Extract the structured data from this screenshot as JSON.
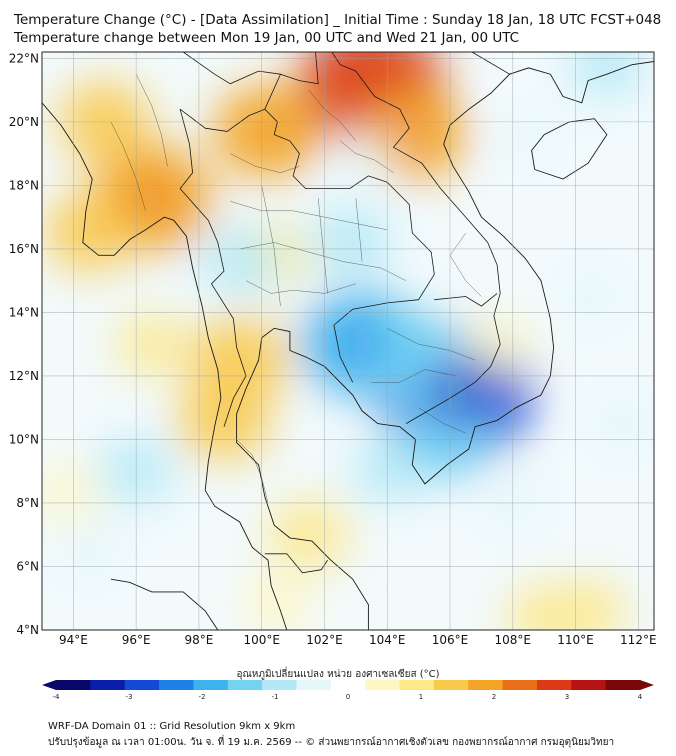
{
  "title_line1": "Temperature Change (°C) - [Data Assimilation] _ Initial Time : Sunday 18 Jan, 18 UTC FCST+048",
  "title_line2": "Temperature change between Mon 19 Jan, 00 UTC and Wed 21 Jan, 00 UTC",
  "lat_labels": [
    {
      "text": "22°N",
      "value": 22
    },
    {
      "text": "20°N",
      "value": 20
    },
    {
      "text": "18°N",
      "value": 18
    },
    {
      "text": "16°N",
      "value": 16
    },
    {
      "text": "14°N",
      "value": 14
    },
    {
      "text": "12°N",
      "value": 12
    },
    {
      "text": "10°N",
      "value": 10
    },
    {
      "text": "8°N",
      "value": 8
    },
    {
      "text": "6°N",
      "value": 6
    },
    {
      "text": "4°N",
      "value": 4
    }
  ],
  "lon_labels": [
    {
      "text": "94°E",
      "value": 94
    },
    {
      "text": "96°E",
      "value": 96
    },
    {
      "text": "98°E",
      "value": 98
    },
    {
      "text": "100°E",
      "value": 100
    },
    {
      "text": "102°E",
      "value": 102
    },
    {
      "text": "104°E",
      "value": 104
    },
    {
      "text": "106°E",
      "value": 106
    },
    {
      "text": "108°E",
      "value": 108
    },
    {
      "text": "110°E",
      "value": 110
    },
    {
      "text": "112°E",
      "value": 112
    }
  ],
  "map_extent": {
    "lon_min": 93.0,
    "lon_max": 112.5,
    "lat_min": 4.0,
    "lat_max": 22.2
  },
  "colorbar": {
    "title": "อุณหภูมิเปลี่ยนแปลง หน่วย องศาเซลเซียส (°C)",
    "ticks": [
      "-4",
      "-3",
      "-2",
      "-1",
      "0",
      "1",
      "2",
      "3",
      "4"
    ],
    "min": -4,
    "max": 4,
    "colors": [
      "#08086b",
      "#0a1fa8",
      "#1449d6",
      "#1f7fe6",
      "#3db3ee",
      "#74d3f3",
      "#b3e9f7",
      "#e6f7fb",
      "#ffffff",
      "#fff7c2",
      "#fde88a",
      "#f9c94c",
      "#f3a326",
      "#ea6f1a",
      "#dc3a16",
      "#b51414",
      "#7a0808"
    ]
  },
  "anomalies": [
    {
      "lon": 96.5,
      "lat": 17.6,
      "value": 2.2
    },
    {
      "lon": 103.5,
      "lat": 21.2,
      "value": 2.8
    },
    {
      "lon": 104.8,
      "lat": 19.6,
      "value": 1.8
    },
    {
      "lon": 100.2,
      "lat": 19.7,
      "value": 1.8
    },
    {
      "lon": 95.0,
      "lat": 20.0,
      "value": 1.4
    },
    {
      "lon": 94.5,
      "lat": 16.5,
      "value": 1.3
    },
    {
      "lon": 99.3,
      "lat": 12.5,
      "value": 1.6
    },
    {
      "lon": 98.8,
      "lat": 10.6,
      "value": 1.4
    },
    {
      "lon": 101.5,
      "lat": 7.0,
      "value": 1.1
    },
    {
      "lon": 100.3,
      "lat": 15.8,
      "value": 0.9
    },
    {
      "lon": 96.5,
      "lat": 13.0,
      "value": 0.8
    },
    {
      "lon": 106.2,
      "lat": 11.4,
      "value": -3.0
    },
    {
      "lon": 103.2,
      "lat": 13.0,
      "value": -2.2
    },
    {
      "lon": 104.8,
      "lat": 12.6,
      "value": -1.6
    },
    {
      "lon": 105.8,
      "lat": 10.0,
      "value": -1.4
    },
    {
      "lon": 102.8,
      "lat": 16.2,
      "value": -1.1
    },
    {
      "lon": 99.3,
      "lat": 15.6,
      "value": -1.0
    },
    {
      "lon": 96.0,
      "lat": 9.0,
      "value": -0.9
    },
    {
      "lon": 94.5,
      "lat": 6.5,
      "value": -0.7
    },
    {
      "lon": 104.0,
      "lat": 9.0,
      "value": -0.8
    },
    {
      "lon": 108.0,
      "lat": 8.0,
      "value": -0.6
    },
    {
      "lon": 111.5,
      "lat": 10.5,
      "value": -0.7
    },
    {
      "lon": 110.5,
      "lat": 14.5,
      "value": -0.6
    },
    {
      "lon": 111.0,
      "lat": 21.8,
      "value": -0.9
    },
    {
      "lon": 108.5,
      "lat": 19.5,
      "value": -0.5
    },
    {
      "lon": 103.3,
      "lat": 18.8,
      "value": -0.6
    },
    {
      "lon": 107.5,
      "lat": 13.0,
      "value": 0.7
    },
    {
      "lon": 109.0,
      "lat": 4.4,
      "value": 0.9
    },
    {
      "lon": 110.5,
      "lat": 4.6,
      "value": 0.8
    },
    {
      "lon": 100.5,
      "lat": 4.8,
      "value": 0.7
    },
    {
      "lon": 93.8,
      "lat": 8.3,
      "value": 0.6
    }
  ],
  "footer_line1": "WRF-DA Domain 01 :: Grid Resolution 9km x 9km",
  "footer_line2": "ปรับปรุงข้อมูล ณ เวลา 01:00น. วัน จ. ที่ 19 ม.ค. 2569 -- © ส่วนพยากรณ์อากาศเชิงตัวเลข กองพยากรณ์อากาศ กรมอุตุนิยมวิทยา"
}
